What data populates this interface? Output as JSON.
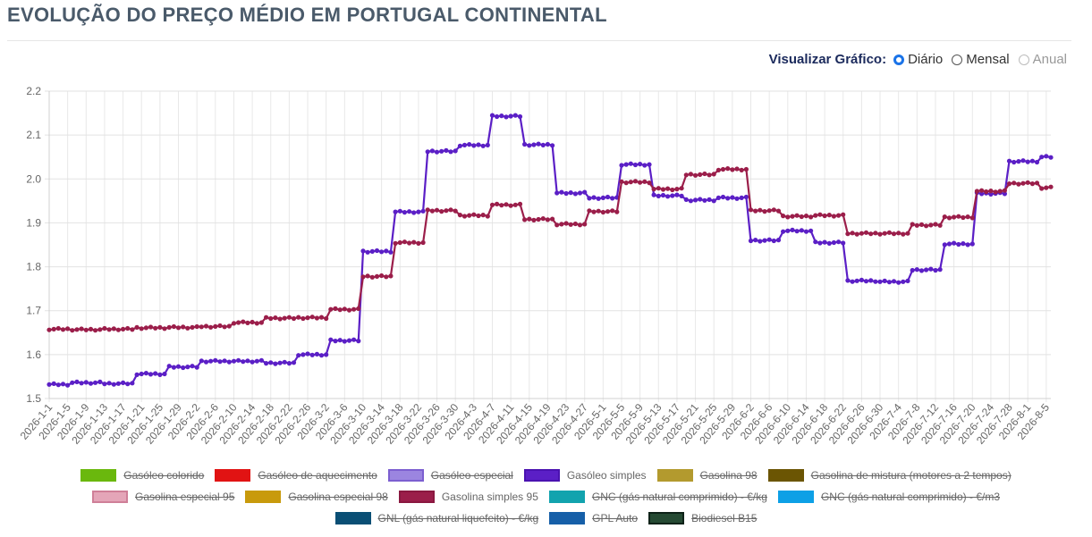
{
  "title": "EVOLUÇÃO DO PREÇO MÉDIO EM PORTUGAL CONTINENTAL",
  "view": {
    "label": "Visualizar Gráfico:",
    "options": [
      {
        "label": "Diário",
        "checked": true,
        "disabled": false
      },
      {
        "label": "Mensal",
        "checked": false,
        "disabled": false
      },
      {
        "label": "Anual",
        "checked": false,
        "disabled": true
      }
    ]
  },
  "legend_rows": [
    [
      {
        "label": "Gasóleo colorido",
        "color": "#6ab80d",
        "border": "#6ab80d",
        "hidden": true
      },
      {
        "label": "Gasóleo de aquecimento",
        "color": "#e11313",
        "border": "#e11313",
        "hidden": true
      },
      {
        "label": "Gasóleo especial",
        "color": "#9b85e0",
        "border": "#7c5fd0",
        "hidden": true
      },
      {
        "label": "Gasóleo simples",
        "color": "#5b1fc6",
        "border": "#4a12b0",
        "hidden": false
      },
      {
        "label": "Gasolina 98",
        "color": "#b39a2e",
        "border": "#b39a2e",
        "hidden": true
      },
      {
        "label": "Gasolina de mistura (motores a 2 tempos)",
        "color": "#6b5503",
        "border": "#6b5503",
        "hidden": true
      }
    ],
    [
      {
        "label": "Gasolina especial 95",
        "color": "#e4a5b8",
        "border": "#cf7f98",
        "hidden": true
      },
      {
        "label": "Gasolina especial 98",
        "color": "#c89a0c",
        "border": "#c89a0c",
        "hidden": true
      },
      {
        "label": "Gasolina simples 95",
        "color": "#9b1e4a",
        "border": "#8a1840",
        "hidden": false
      },
      {
        "label": "GNC (gás natural comprimido) - €/kg",
        "color": "#12a3ae",
        "border": "#12a3ae",
        "hidden": true
      },
      {
        "label": "GNC (gás natural comprimido) - €/m3",
        "color": "#0da0e6",
        "border": "#0da0e6",
        "hidden": true
      }
    ],
    [
      {
        "label": "GNL (gás natural liquefeito) - €/kg",
        "color": "#0a4f75",
        "border": "#0a4f75",
        "hidden": true
      },
      {
        "label": "GPL Auto",
        "color": "#165fa8",
        "border": "#165fa8",
        "hidden": true
      },
      {
        "label": "Biodiesel B15",
        "color": "#254a33",
        "border": "#0e2218",
        "hidden": true
      }
    ]
  ],
  "chart_data": {
    "type": "line",
    "y_ticks": [
      "1.5",
      "1.6",
      "1.7",
      "1.8",
      "1.9",
      "2.0",
      "2.1",
      "2.2"
    ],
    "ylim": [
      1.5,
      2.2
    ],
    "x_labels": [
      "2026-1-1",
      "2026-1-5",
      "2026-1-9",
      "2026-1-13",
      "2026-1-17",
      "2026-1-21",
      "2026-1-25",
      "2026-1-29",
      "2026-2-2",
      "2026-2-6",
      "2026-2-10",
      "2026-2-14",
      "2026-2-18",
      "2026-2-22",
      "2026-2-26",
      "2026-3-2",
      "2026-3-6",
      "2026-3-10",
      "2026-3-14",
      "2026-3-18",
      "2026-3-22",
      "2026-3-26",
      "2026-3-30",
      "2026-4-3",
      "2026-4-7",
      "2026-4-11",
      "2026-4-15",
      "2026-4-19",
      "2026-4-23",
      "2026-4-27",
      "2026-5-1",
      "2026-5-5",
      "2026-5-9",
      "2026-5-13",
      "2026-5-17",
      "2026-5-21",
      "2026-5-25",
      "2026-5-29",
      "2026-6-2",
      "2026-6-6",
      "2026-6-10",
      "2026-6-14",
      "2026-6-18",
      "2026-6-22",
      "2026-6-26",
      "2026-6-30",
      "2026-7-4",
      "2026-7-8",
      "2026-7-12",
      "2026-7-16",
      "2026-7-20",
      "2026-7-24",
      "2026-7-28",
      "2026-8-1",
      "2026-8-5"
    ],
    "grid": true,
    "legend_position": "bottom",
    "series": [
      {
        "name": "Gasóleo simples",
        "color": "#5b1fc6",
        "segments": [
          [
            1,
            5,
            1.532
          ],
          [
            6,
            12,
            1.536
          ],
          [
            13,
            19,
            1.534
          ],
          [
            20,
            26,
            1.556
          ],
          [
            27,
            33,
            1.572
          ],
          [
            34,
            40,
            1.585
          ],
          [
            41,
            47,
            1.585
          ],
          [
            48,
            54,
            1.581
          ],
          [
            55,
            61,
            1.6
          ],
          [
            62,
            68,
            1.632
          ],
          [
            69,
            75,
            1.835
          ],
          [
            76,
            82,
            1.925
          ],
          [
            83,
            89,
            2.063
          ],
          [
            90,
            96,
            2.077
          ],
          [
            97,
            103,
            2.143
          ],
          [
            104,
            110,
            2.078
          ],
          [
            111,
            117,
            1.968
          ],
          [
            118,
            124,
            1.957
          ],
          [
            125,
            131,
            2.033
          ],
          [
            132,
            138,
            1.962
          ],
          [
            139,
            145,
            1.952
          ],
          [
            146,
            152,
            1.957
          ],
          [
            153,
            159,
            1.86
          ],
          [
            160,
            166,
            1.882
          ],
          [
            167,
            173,
            1.855
          ],
          [
            174,
            180,
            1.768
          ],
          [
            181,
            187,
            1.766
          ],
          [
            188,
            194,
            1.793
          ],
          [
            195,
            201,
            1.852
          ],
          [
            202,
            208,
            1.967
          ],
          [
            209,
            215,
            2.04
          ],
          [
            216,
            218,
            2.05
          ]
        ]
      },
      {
        "name": "Gasolina simples 95",
        "color": "#9b1e4a",
        "segments": [
          [
            1,
            5,
            1.658
          ],
          [
            6,
            12,
            1.657
          ],
          [
            13,
            19,
            1.658
          ],
          [
            20,
            26,
            1.661
          ],
          [
            27,
            33,
            1.662
          ],
          [
            34,
            40,
            1.664
          ],
          [
            41,
            47,
            1.673
          ],
          [
            48,
            54,
            1.683
          ],
          [
            55,
            61,
            1.684
          ],
          [
            62,
            68,
            1.703
          ],
          [
            69,
            75,
            1.778
          ],
          [
            76,
            82,
            1.855
          ],
          [
            83,
            89,
            1.928
          ],
          [
            90,
            96,
            1.917
          ],
          [
            97,
            103,
            1.941
          ],
          [
            104,
            110,
            1.908
          ],
          [
            111,
            117,
            1.897
          ],
          [
            118,
            124,
            1.926
          ],
          [
            125,
            131,
            1.993
          ],
          [
            132,
            138,
            1.977
          ],
          [
            139,
            145,
            2.01
          ],
          [
            146,
            152,
            2.022
          ],
          [
            153,
            159,
            1.928
          ],
          [
            160,
            166,
            1.915
          ],
          [
            167,
            173,
            1.917
          ],
          [
            174,
            180,
            1.876
          ],
          [
            181,
            187,
            1.876
          ],
          [
            188,
            194,
            1.895
          ],
          [
            195,
            201,
            1.913
          ],
          [
            202,
            208,
            1.972
          ],
          [
            209,
            215,
            1.99
          ],
          [
            216,
            218,
            1.98
          ]
        ]
      }
    ]
  }
}
